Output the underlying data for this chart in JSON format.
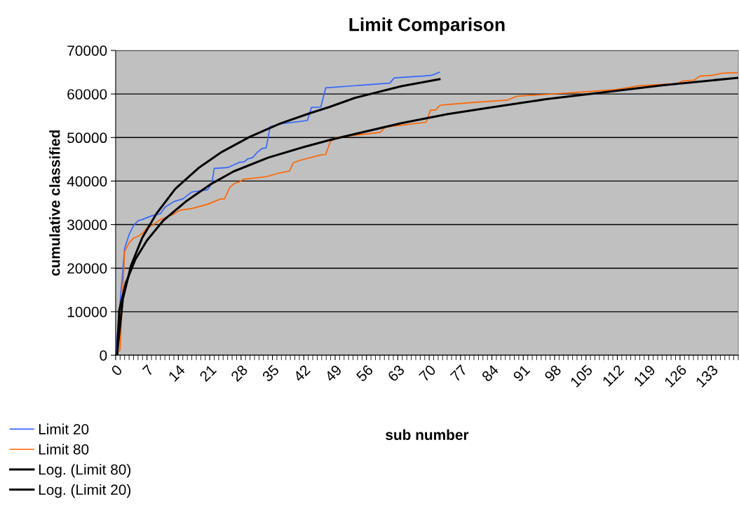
{
  "chart_data": {
    "type": "line",
    "title": "Limit Comparison",
    "xlabel": "sub number",
    "ylabel": "cumulative classified",
    "xlim": [
      0,
      139
    ],
    "xticks": [
      0,
      7,
      14,
      21,
      28,
      35,
      42,
      49,
      56,
      63,
      70,
      77,
      84,
      91,
      98,
      105,
      112,
      119,
      126,
      133
    ],
    "ylim": [
      0,
      70000
    ],
    "yticks": [
      0,
      10000,
      20000,
      30000,
      40000,
      50000,
      60000,
      70000
    ],
    "grid": "y",
    "legend": "bottom left",
    "marker": "none",
    "line_style": "solid",
    "series": [
      {
        "name": "Limit 20",
        "color": "#3366ff",
        "x": [
          0,
          2,
          3,
          4,
          5,
          6,
          8,
          10,
          11,
          13,
          15,
          17,
          20.5,
          21.5,
          22,
          25,
          27.6,
          28.6,
          29.5,
          30.6,
          31.7,
          32.7,
          33.6,
          34.5,
          37.2,
          42.8,
          43.7,
          45.8,
          46.9,
          61.2,
          62.2,
          68.5,
          70.6,
          72.3
        ],
        "values": [
          0,
          24500,
          27700,
          29800,
          30900,
          31200,
          32000,
          32500,
          34000,
          35300,
          35900,
          37500,
          38000,
          39500,
          42900,
          43100,
          44300,
          44400,
          45100,
          45400,
          46700,
          47500,
          47600,
          52500,
          53200,
          53900,
          56900,
          57000,
          61400,
          62500,
          63700,
          64100,
          64300,
          65000
        ]
      },
      {
        "name": "Limit 80",
        "color": "#ff6600",
        "x": [
          0,
          1,
          2,
          3,
          4,
          5,
          6,
          7.3,
          8,
          9,
          10,
          12,
          13,
          14.3,
          15,
          17,
          20.6,
          22,
          23.4,
          24.3,
          25.5,
          26.6,
          27.6,
          28.5,
          33.6,
          36.3,
          38.8,
          39.7,
          40.9,
          45.8,
          46.9,
          47.9,
          49.2,
          59.1,
          60.2,
          69.3,
          70.3,
          71.4,
          72.4,
          74.2,
          80.5,
          87.5,
          89.6,
          96.1,
          103.4,
          111.7,
          116.9,
          125.3,
          126.6,
          129.2,
          130.4,
          133.3,
          135.6,
          138.8
        ],
        "values": [
          0,
          1300,
          23800,
          25800,
          26900,
          27300,
          28000,
          29700,
          29700,
          30400,
          31200,
          32000,
          32400,
          33300,
          33400,
          33700,
          34700,
          35300,
          35900,
          35900,
          38600,
          39500,
          39800,
          40400,
          41000,
          41800,
          42300,
          44200,
          44700,
          46000,
          46100,
          49000,
          50000,
          51200,
          52400,
          53500,
          56300,
          56300,
          57400,
          57600,
          58100,
          58600,
          59500,
          59900,
          60400,
          61000,
          61900,
          62400,
          63000,
          63200,
          64100,
          64300,
          64800,
          64900
        ]
      },
      {
        "name": "Log. (Limit 80)",
        "color": "#000000",
        "x": [
          0.3,
          0.8,
          2.3,
          4.4,
          7,
          10.6,
          15.9,
          21.1,
          26.3,
          34.1,
          41.9,
          47.7,
          53.4,
          63.8,
          74.2,
          83.6,
          96.1,
          109,
          122,
          138.8
        ],
        "values": [
          0,
          10300,
          16700,
          22000,
          26400,
          30900,
          35500,
          39200,
          42200,
          45400,
          47800,
          49400,
          50800,
          53300,
          55400,
          56900,
          58800,
          60400,
          62000,
          63700
        ]
      },
      {
        "name": "Log. (Limit 20)",
        "color": "#000000",
        "x": [
          0.3,
          1.6,
          3.4,
          5.9,
          9.1,
          13.3,
          18.5,
          23.7,
          30,
          36.7,
          43.4,
          47.7,
          53.4,
          63.8,
          72.3
        ],
        "values": [
          0,
          12900,
          20500,
          26900,
          32500,
          38200,
          43000,
          46700,
          50200,
          53200,
          55600,
          57000,
          59100,
          61800,
          63400
        ]
      }
    ]
  }
}
